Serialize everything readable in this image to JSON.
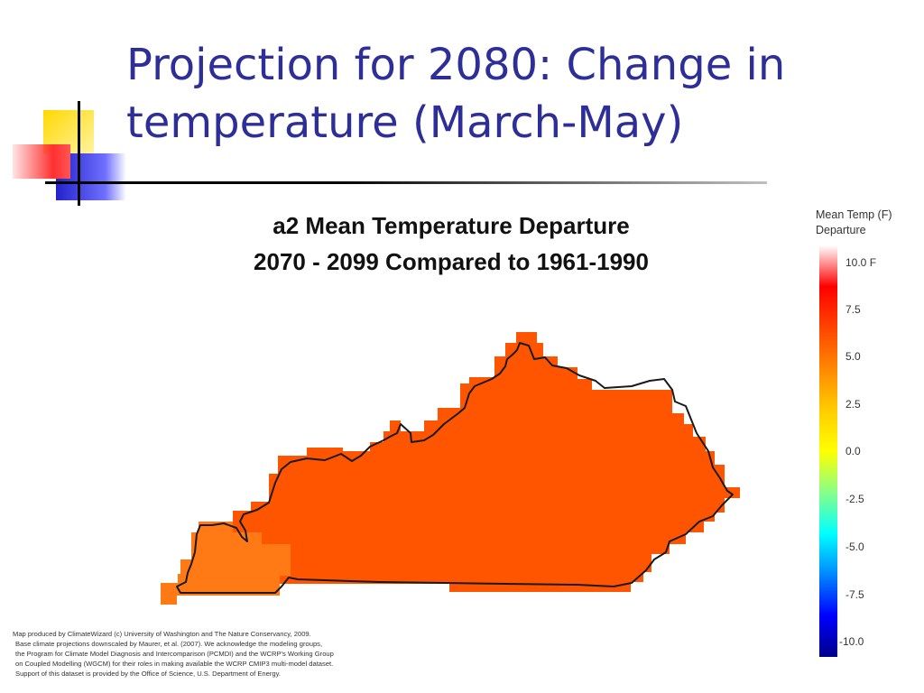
{
  "slide": {
    "title_line1": "Projection for 2080: Change in",
    "title_line2": "temperature (March-May)"
  },
  "map": {
    "title_line1": "a2 Mean Temperature Departure",
    "title_line2": "2070 - 2099 Compared to 1961-1990",
    "fill_color": "#ff5500",
    "fill_color_west": "#ff7a15",
    "outline_color": "#1a1a1a"
  },
  "legend": {
    "title_line1": "Mean Temp (F)",
    "title_line2": "Departure",
    "ticks": [
      "10.0  F",
      "7.5",
      "5.0",
      "2.5",
      "0.0",
      "-2.5",
      "-5.0",
      "-7.5",
      "-10.0"
    ],
    "colors": [
      "#ffffff",
      "#ff0000",
      "#ff4400",
      "#ff8800",
      "#ffcc00",
      "#ffff00",
      "#88ff88",
      "#00ffff",
      "#0088ff",
      "#0000ff",
      "#00008b"
    ]
  },
  "credit": {
    "line1": "Map produced by ClimateWizard (c) University of Washington and The Nature Conservancy, 2009.",
    "line2": "Base climate projections downscaled by Maurer, et al. (2007). We acknowledge the modeling groups,",
    "line3": "the Program for Climate Model Diagnosis and Intercomparison (PCMDI) and the WCRP's Working Group",
    "line4": "on Coupled Modelling (WGCM) for their roles in making available the WCRP CMIP3 multi-model dataset.",
    "line5": "Support of this dataset is provided by the Office of Science, U.S. Department of Energy."
  }
}
